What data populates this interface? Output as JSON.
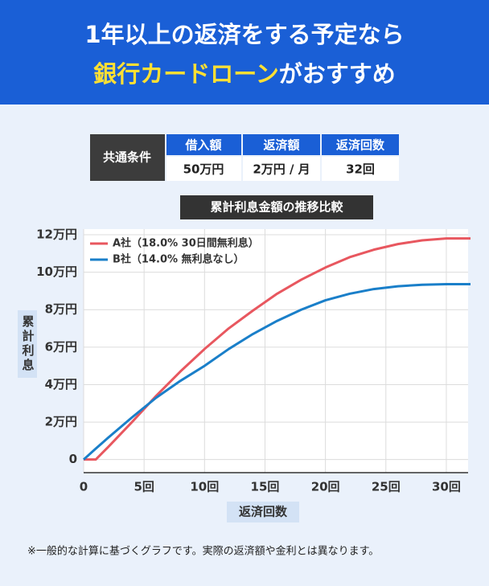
{
  "header": {
    "line1": "1年以上の返済をする予定なら",
    "line2_highlight": "銀行カードローン",
    "line2_rest": "がおすすめ"
  },
  "conditions_table": {
    "row_header": "共通条件",
    "columns": [
      "借入額",
      "返済額",
      "返済回数"
    ],
    "values": [
      "50万円",
      "2万円 / 月",
      "32回"
    ]
  },
  "chart_data": {
    "type": "line",
    "title": "累計利息金額の推移比較",
    "y_label": "累計利息",
    "x_label": "返済回数",
    "x": [
      0,
      1,
      2,
      4,
      6,
      8,
      10,
      12,
      14,
      16,
      18,
      20,
      22,
      24,
      26,
      28,
      30,
      32
    ],
    "xlim": [
      0,
      31.8
    ],
    "xticks": [
      0,
      {
        "value": 5,
        "label": "5回"
      },
      {
        "value": 10,
        "label": "10回"
      },
      {
        "value": 15,
        "label": "15回"
      },
      {
        "value": 20,
        "label": "20回"
      },
      {
        "value": 25,
        "label": "25回"
      },
      {
        "value": 30,
        "label": "30回"
      }
    ],
    "ylim": [
      -0.7,
      12.3
    ],
    "yticks": [
      0,
      {
        "value": 2,
        "label": "2万円"
      },
      {
        "value": 4,
        "label": "4万円"
      },
      {
        "value": 6,
        "label": "6万円"
      },
      {
        "value": 8,
        "label": "8万円"
      },
      {
        "value": 10,
        "label": "10万円"
      },
      {
        "value": 12,
        "label": "12万円"
      }
    ],
    "grid": true,
    "legend": "upper-left",
    "series": [
      {
        "name": "A社（18.0% 30日間無利息）",
        "color": "#e8575f",
        "values": [
          0,
          0,
          0.65,
          2.0,
          3.4,
          4.7,
          5.9,
          7.0,
          7.95,
          8.85,
          9.6,
          10.25,
          10.8,
          11.2,
          11.5,
          11.7,
          11.8,
          11.8
        ]
      },
      {
        "name": "B社（14.0% 無利息なし）",
        "color": "#1a7fc9",
        "values": [
          0,
          0.58,
          1.15,
          2.25,
          3.3,
          4.2,
          5.0,
          5.9,
          6.7,
          7.4,
          8.0,
          8.5,
          8.85,
          9.1,
          9.25,
          9.33,
          9.36,
          9.36
        ]
      }
    ]
  },
  "footnote": "※一般的な計算に基づくグラフです。実際の返済額や金利とは異なります。"
}
